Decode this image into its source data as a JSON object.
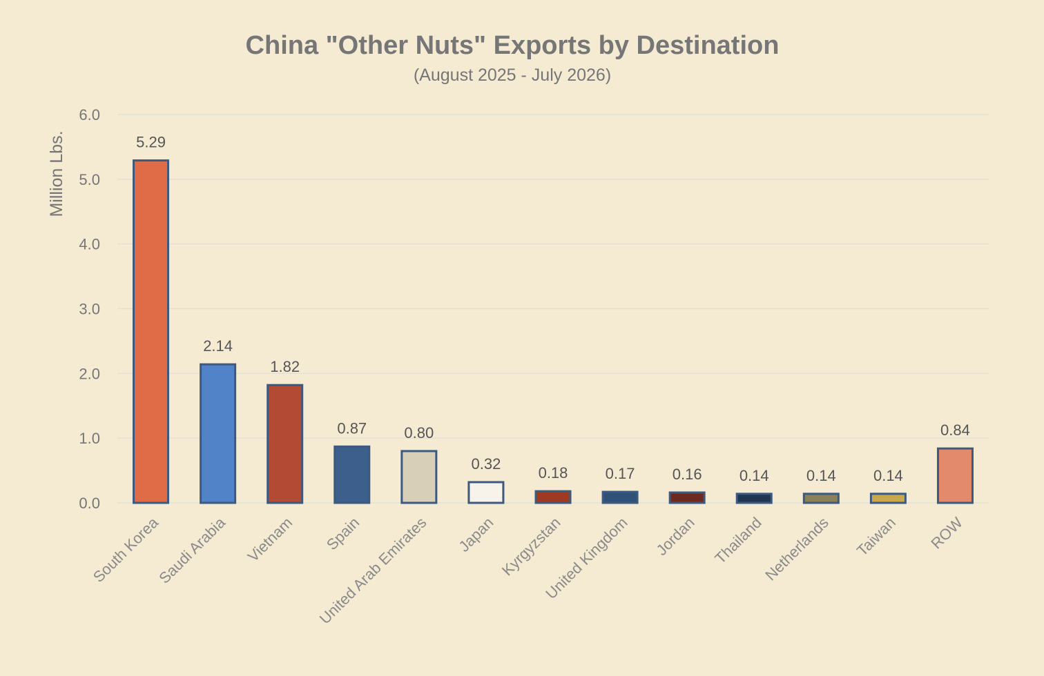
{
  "chart_data": {
    "type": "bar",
    "title": "China \"Other Nuts\" Exports by Destination",
    "subtitle": "(August 2025 - July 2026)",
    "xlabel": "",
    "ylabel": "Million Lbs.",
    "ylim": [
      0,
      6
    ],
    "yticks": [
      "0.0",
      "1.0",
      "2.0",
      "3.0",
      "4.0",
      "5.0",
      "6.0"
    ],
    "grid": true,
    "categories": [
      "South Korea",
      "Saudi Arabia",
      "Vietnam",
      "Spain",
      "United Arab Emirates",
      "Japan",
      "Kyrgyzstan",
      "United Kingdom",
      "Jordan",
      "Thailand",
      "Netherlands",
      "Taiwan",
      "ROW"
    ],
    "values": [
      5.29,
      2.14,
      1.82,
      0.87,
      0.8,
      0.32,
      0.18,
      0.17,
      0.16,
      0.14,
      0.14,
      0.14,
      0.84
    ],
    "data_labels": [
      "5.29",
      "2.14",
      "1.82",
      "0.87",
      "0.80",
      "0.32",
      "0.18",
      "0.17",
      "0.16",
      "0.14",
      "0.14",
      "0.14",
      "0.84"
    ],
    "bar_colors": [
      "#e06c47",
      "#5083c8",
      "#b34a33",
      "#3d5f8b",
      "#d8cfb8",
      "#f8f3ea",
      "#9f3a22",
      "#2f5178",
      "#6e2a20",
      "#1f3550",
      "#8a8159",
      "#c9a84d",
      "#e48a6c"
    ],
    "border_color": "#3c5a80"
  }
}
